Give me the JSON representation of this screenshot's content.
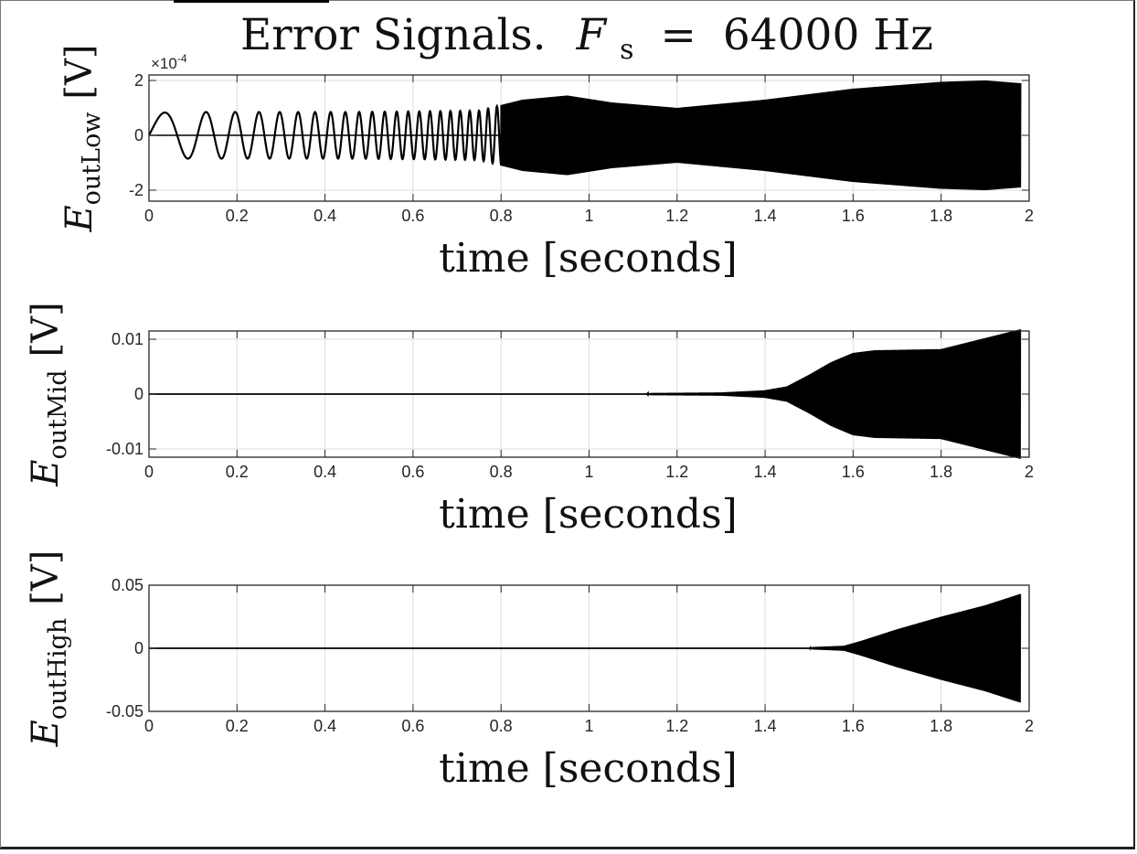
{
  "figure": {
    "title_text": "Error Signals.",
    "title_symbol": "F",
    "title_subscript": "s",
    "title_equals": "=",
    "title_value": "64000 Hz"
  },
  "chart_data": [
    {
      "type": "line",
      "xlabel": "time [seconds]",
      "ylabel": {
        "symbol": "E",
        "subscript": "outLow",
        "unit": "[V]"
      },
      "y_exponent": {
        "base": "×10",
        "power": "-4"
      },
      "xlim": [
        0,
        2
      ],
      "ylim": [
        -2.4,
        2.2
      ],
      "xticks": [
        0,
        0.2,
        0.4,
        0.6,
        0.8,
        1,
        1.2,
        1.4,
        1.6,
        1.8,
        2
      ],
      "xtick_labels": [
        "0",
        "0.2",
        "0.4",
        "0.6",
        "0.8",
        "1",
        "1.2",
        "1.4",
        "1.6",
        "1.8",
        "2"
      ],
      "yticks": [
        -2,
        0,
        2
      ],
      "ytick_labels": [
        "-2",
        "0",
        "2"
      ],
      "grid": true,
      "color": "#000000",
      "envelope": {
        "t": [
          0,
          0.06,
          0.2,
          0.45,
          0.6,
          0.75,
          0.85,
          0.95,
          1.05,
          1.2,
          1.4,
          1.6,
          1.8,
          1.9,
          1.98
        ],
        "amp": [
          0.8,
          0.85,
          0.85,
          0.85,
          0.87,
          0.9,
          1.3,
          1.45,
          1.2,
          1.0,
          1.3,
          1.7,
          1.95,
          2.0,
          1.9
        ]
      }
    },
    {
      "type": "line",
      "xlabel": "time [seconds]",
      "ylabel": {
        "symbol": "E",
        "subscript": "outMid",
        "unit": "[V]"
      },
      "xlim": [
        0,
        2
      ],
      "ylim": [
        -0.0115,
        0.0115
      ],
      "xticks": [
        0,
        0.2,
        0.4,
        0.6,
        0.8,
        1,
        1.2,
        1.4,
        1.6,
        1.8,
        2
      ],
      "xtick_labels": [
        "0",
        "0.2",
        "0.4",
        "0.6",
        "0.8",
        "1",
        "1.2",
        "1.4",
        "1.6",
        "1.8",
        "2"
      ],
      "yticks": [
        -0.01,
        0,
        0.01
      ],
      "ytick_labels": [
        "-0.01",
        "0",
        "0.01"
      ],
      "grid": true,
      "color": "#000000",
      "envelope": {
        "t": [
          0,
          1.13,
          1.14,
          1.3,
          1.4,
          1.45,
          1.5,
          1.55,
          1.6,
          1.65,
          1.8,
          1.98
        ],
        "amp": [
          0,
          0,
          0.0002,
          0.0003,
          0.0007,
          0.0014,
          0.0035,
          0.0058,
          0.0075,
          0.008,
          0.0082,
          0.0118
        ]
      }
    },
    {
      "type": "line",
      "xlabel": "time [seconds]",
      "ylabel": {
        "symbol": "E",
        "subscript": "outHigh",
        "unit": "[V]"
      },
      "xlim": [
        0,
        2
      ],
      "ylim": [
        -0.05,
        0.05
      ],
      "xticks": [
        0,
        0.2,
        0.4,
        0.6,
        0.8,
        1,
        1.2,
        1.4,
        1.6,
        1.8,
        2
      ],
      "xtick_labels": [
        "0",
        "0.2",
        "0.4",
        "0.6",
        "0.8",
        "1",
        "1.2",
        "1.4",
        "1.6",
        "1.8",
        "2"
      ],
      "yticks": [
        -0.05,
        0,
        0.05
      ],
      "ytick_labels": [
        "-0.05",
        "0",
        "0.05"
      ],
      "grid": true,
      "color": "#000000",
      "envelope": {
        "t": [
          0,
          1.5,
          1.51,
          1.58,
          1.62,
          1.7,
          1.8,
          1.9,
          1.98
        ],
        "amp": [
          0,
          0,
          0.001,
          0.002,
          0.006,
          0.015,
          0.025,
          0.034,
          0.043
        ]
      }
    }
  ]
}
